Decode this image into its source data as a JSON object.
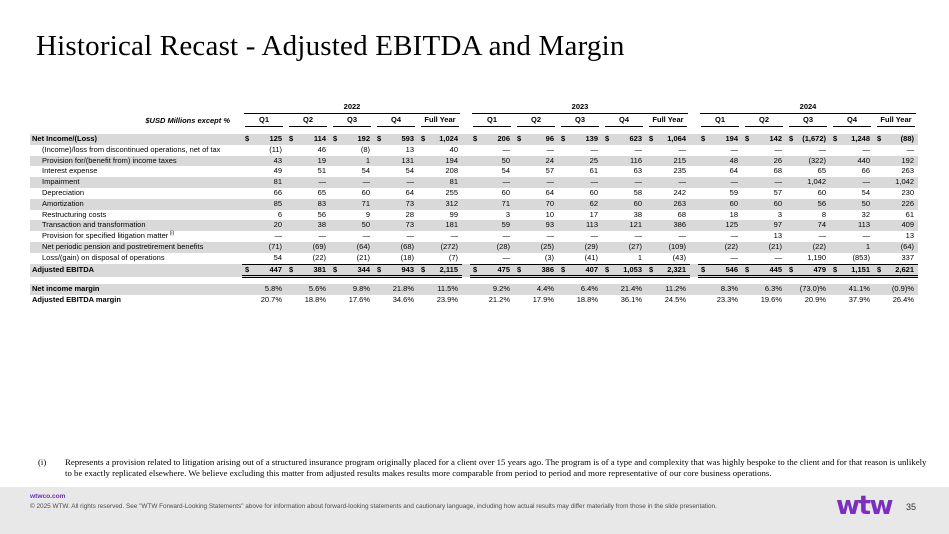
{
  "slide": {
    "title": "Historical Recast - Adjusted EBITDA and Margin"
  },
  "colors": {
    "brand_purple": "#7a2fc0",
    "row_shade": "#d9d9d9",
    "footer_bg": "#e8e8e8"
  },
  "table": {
    "unit_label": "$USD Millions except %",
    "year_groups": [
      "2022",
      "2023",
      "2024"
    ],
    "quarter_headers": [
      "Q1",
      "Q2",
      "Q3",
      "Q4",
      "Full Year"
    ],
    "rows": [
      {
        "label": "Net Income/(Loss)",
        "bold": true,
        "shaded": true,
        "indent": false,
        "dollar": true,
        "values": [
          "125",
          "114",
          "192",
          "593",
          "1,024",
          "206",
          "96",
          "139",
          "623",
          "1,064",
          "194",
          "142",
          "(1,672)",
          "1,248",
          "(88)"
        ]
      },
      {
        "label": "(Income)/loss from discontinued operations, net of tax",
        "shaded": false,
        "indent": true,
        "values": [
          "(11)",
          "46",
          "(8)",
          "13",
          "40",
          "—",
          "—",
          "—",
          "—",
          "—",
          "—",
          "—",
          "—",
          "—",
          "—"
        ]
      },
      {
        "label": "Provision for/(benefit from) income taxes",
        "shaded": true,
        "indent": true,
        "values": [
          "43",
          "19",
          "1",
          "131",
          "194",
          "50",
          "24",
          "25",
          "116",
          "215",
          "48",
          "26",
          "(322)",
          "440",
          "192"
        ]
      },
      {
        "label": "Interest expense",
        "shaded": false,
        "indent": true,
        "values": [
          "49",
          "51",
          "54",
          "54",
          "208",
          "54",
          "57",
          "61",
          "63",
          "235",
          "64",
          "68",
          "65",
          "66",
          "263"
        ]
      },
      {
        "label": "Impairment",
        "shaded": true,
        "indent": true,
        "values": [
          "81",
          "—",
          "—",
          "—",
          "81",
          "—",
          "—",
          "—",
          "—",
          "—",
          "—",
          "—",
          "1,042",
          "—",
          "1,042"
        ]
      },
      {
        "label": "Depreciation",
        "shaded": false,
        "indent": true,
        "values": [
          "66",
          "65",
          "60",
          "64",
          "255",
          "60",
          "64",
          "60",
          "58",
          "242",
          "59",
          "57",
          "60",
          "54",
          "230"
        ]
      },
      {
        "label": "Amortization",
        "shaded": true,
        "indent": true,
        "values": [
          "85",
          "83",
          "71",
          "73",
          "312",
          "71",
          "70",
          "62",
          "60",
          "263",
          "60",
          "60",
          "56",
          "50",
          "226"
        ]
      },
      {
        "label": "Restructuring costs",
        "shaded": false,
        "indent": true,
        "values": [
          "6",
          "56",
          "9",
          "28",
          "99",
          "3",
          "10",
          "17",
          "38",
          "68",
          "18",
          "3",
          "8",
          "32",
          "61"
        ]
      },
      {
        "label": "Transaction and transformation",
        "shaded": true,
        "indent": true,
        "values": [
          "20",
          "38",
          "50",
          "73",
          "181",
          "59",
          "93",
          "113",
          "121",
          "386",
          "125",
          "97",
          "74",
          "113",
          "409"
        ]
      },
      {
        "label": "Provision for specified litigation matter",
        "sup": "(i)",
        "shaded": false,
        "indent": true,
        "values": [
          "—",
          "—",
          "—",
          "—",
          "—",
          "—",
          "—",
          "—",
          "—",
          "—",
          "—",
          "13",
          "—",
          "—",
          "13"
        ]
      },
      {
        "label": "Net periodic pension and postretirement benefits",
        "shaded": true,
        "indent": true,
        "values": [
          "(71)",
          "(69)",
          "(64)",
          "(68)",
          "(272)",
          "(28)",
          "(25)",
          "(29)",
          "(27)",
          "(109)",
          "(22)",
          "(21)",
          "(22)",
          "1",
          "(64)"
        ]
      },
      {
        "label": "Loss/(gain) on disposal of operations",
        "shaded": false,
        "indent": true,
        "values": [
          "54",
          "(22)",
          "(21)",
          "(18)",
          "(7)",
          "—",
          "(3)",
          "(41)",
          "1",
          "(43)",
          "—",
          "—",
          "1,190",
          "(853)",
          "337"
        ]
      },
      {
        "label": "Adjusted EBITDA",
        "bold": true,
        "shaded": true,
        "indent": false,
        "dollar": true,
        "total": true,
        "values": [
          "447",
          "381",
          "344",
          "943",
          "2,115",
          "475",
          "386",
          "407",
          "1,053",
          "2,321",
          "546",
          "445",
          "479",
          "1,151",
          "2,621"
        ]
      }
    ],
    "margin_rows": [
      {
        "label": "Net income margin",
        "shaded": true,
        "values": [
          "5.8%",
          "5.6%",
          "9.8%",
          "21.8%",
          "11.5%",
          "9.2%",
          "4.4%",
          "6.4%",
          "21.4%",
          "11.2%",
          "8.3%",
          "6.3%",
          "(73.0)%",
          "41.1%",
          "(0.9)%"
        ]
      },
      {
        "label": "Adjusted EBITDA margin",
        "shaded": false,
        "values": [
          "20.7%",
          "18.8%",
          "17.6%",
          "34.6%",
          "23.9%",
          "21.2%",
          "17.9%",
          "18.8%",
          "36.1%",
          "24.5%",
          "23.3%",
          "19.6%",
          "20.9%",
          "37.9%",
          "26.4%"
        ]
      }
    ]
  },
  "footnote": {
    "marker": "(i)",
    "text": "Represents a provision related to litigation arising out of a structured insurance program originally placed for a client over 15 years ago. The program is of a type and complexity that was highly bespoke to the client and for that reason is unlikely to be exactly replicated elsewhere. We believe excluding this matter from adjusted results makes results more comparable from period to period and more representative of our core business operations."
  },
  "footer": {
    "website": "wtwco.com",
    "copyright": "© 2025 WTW. All rights reserved. See \"WTW Forward-Looking Statements\" above for information about forward-looking statements and cautionary language, including how actual results may differ materially from those in the slide presentation.",
    "logo": "wtw",
    "page_number": "35"
  }
}
